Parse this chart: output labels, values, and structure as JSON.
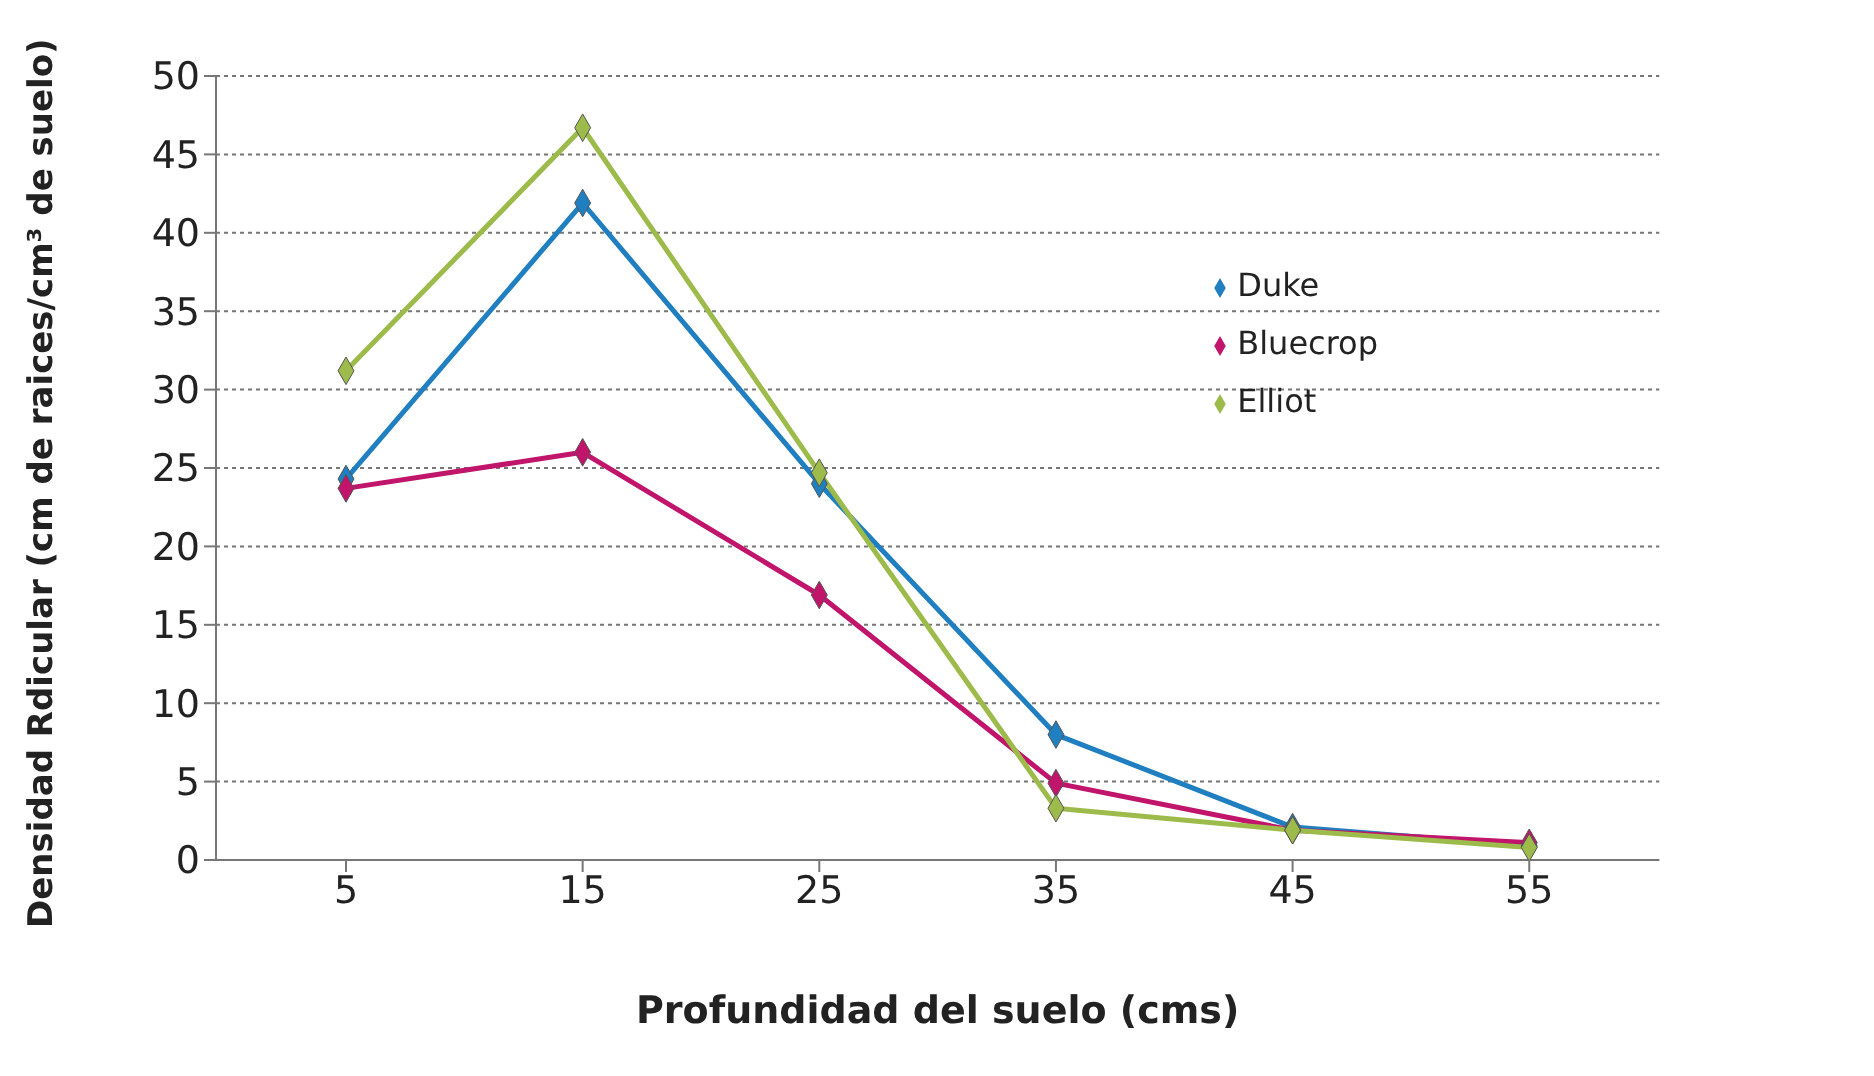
{
  "chart_data": {
    "type": "line",
    "xlabel": "Profundidad del suelo (cms)",
    "ylabel": "Densidad Rdicular (cm de raices/cm³ de suelo)",
    "categories": [
      "5",
      "15",
      "25",
      "35",
      "45",
      "55"
    ],
    "series": [
      {
        "name": "Duke",
        "color": "#1f7fc0",
        "values": [
          24.3,
          41.9,
          24,
          8,
          2.1,
          0.9
        ]
      },
      {
        "name": "Bluecrop",
        "color": "#c0156a",
        "values": [
          23.7,
          26,
          16.9,
          4.9,
          1.9,
          1.1
        ]
      },
      {
        "name": "Elliot",
        "color": "#9dbb4a",
        "values": [
          31.2,
          46.7,
          24.7,
          3.3,
          1.9,
          0.8
        ]
      }
    ],
    "ylim": [
      0,
      50
    ],
    "yticks": [
      0,
      5,
      10,
      15,
      20,
      25,
      30,
      35,
      40,
      45,
      50
    ],
    "grid": "y",
    "legend": "top right",
    "marker": "diamond",
    "line_style": "solid"
  }
}
